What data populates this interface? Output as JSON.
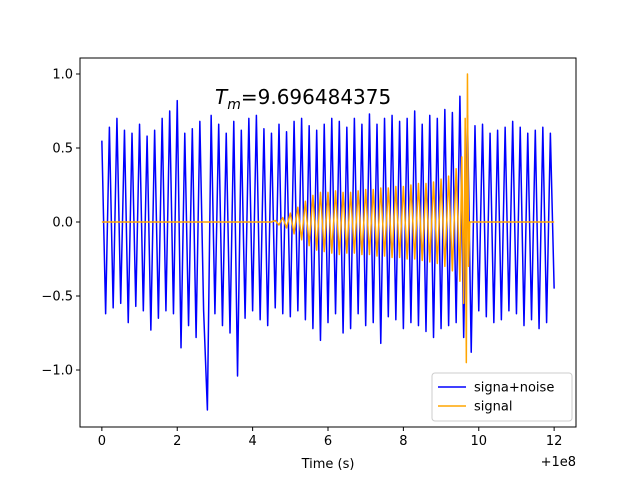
{
  "chart_data": {
    "type": "line",
    "xlabel": "Time (s)",
    "x_offset_label": "+1e8",
    "annotation": {
      "symbol": "T",
      "subscript": "m",
      "text": "=9.696484375"
    },
    "xlim": [
      -0.58,
      12.58
    ],
    "ylim": [
      -1.385,
      1.108
    ],
    "xticks": [
      0,
      2,
      4,
      6,
      8,
      10,
      12
    ],
    "yticks": [
      {
        "value": -1,
        "label": "−1.0"
      },
      {
        "value": -0.5,
        "label": "−0.5"
      },
      {
        "value": 0,
        "label": "0.0"
      },
      0.5,
      {
        "value": 1,
        "label": "1.0"
      }
    ],
    "legend": "lower right",
    "series": [
      {
        "name": "signa+noise",
        "color": "#0000ff",
        "x": [
          0,
          0.1,
          0.2,
          0.3,
          0.4,
          0.5,
          0.6,
          0.7,
          0.8,
          0.9,
          1,
          1.1,
          1.2,
          1.3,
          1.4,
          1.5,
          1.6,
          1.7,
          1.8,
          1.9,
          2,
          2.1,
          2.2,
          2.3,
          2.4,
          2.5,
          2.6,
          2.7,
          2.8,
          2.9,
          3,
          3.1,
          3.2,
          3.3,
          3.4,
          3.5,
          3.6,
          3.7,
          3.8,
          3.9,
          4,
          4.1,
          4.2,
          4.3,
          4.4,
          4.5,
          4.6,
          4.7,
          4.8,
          4.9,
          5,
          5.1,
          5.2,
          5.3,
          5.4,
          5.5,
          5.6,
          5.7,
          5.8,
          5.9,
          6,
          6.1,
          6.2,
          6.3,
          6.4,
          6.5,
          6.6,
          6.7,
          6.8,
          6.9,
          7,
          7.1,
          7.2,
          7.3,
          7.4,
          7.5,
          7.6,
          7.7,
          7.8,
          7.9,
          8,
          8.1,
          8.2,
          8.3,
          8.4,
          8.5,
          8.6,
          8.7,
          8.8,
          8.9,
          9,
          9.1,
          9.2,
          9.3,
          9.4,
          9.5,
          9.6,
          9.7,
          9.8,
          9.9,
          10,
          10.1,
          10.2,
          10.3,
          10.4,
          10.5,
          10.6,
          10.7,
          10.8,
          10.9,
          11,
          11.1,
          11.2,
          11.3,
          11.4,
          11.5,
          11.6,
          11.7,
          11.8,
          11.9,
          12
        ],
        "values": [
          0.55,
          -0.62,
          0.64,
          -0.58,
          0.7,
          -0.55,
          0.62,
          -0.68,
          0.6,
          -0.57,
          0.66,
          -0.6,
          0.58,
          -0.73,
          0.62,
          -0.65,
          0.7,
          -0.6,
          0.75,
          -0.62,
          0.82,
          -0.85,
          0.6,
          -0.7,
          0.63,
          -0.78,
          0.68,
          -0.6,
          -1.27,
          0.72,
          -0.62,
          0.66,
          -0.7,
          0.6,
          -0.75,
          0.68,
          -1.04,
          0.62,
          -0.65,
          0.7,
          -0.6,
          0.72,
          -0.66,
          0.63,
          -0.7,
          0.6,
          -0.58,
          0.66,
          -0.62,
          0.61,
          -0.64,
          0.68,
          -0.6,
          0.7,
          -0.66,
          0.65,
          -0.72,
          0.62,
          -0.8,
          0.66,
          -0.68,
          0.7,
          -0.62,
          0.68,
          -0.75,
          0.64,
          -0.72,
          0.7,
          -0.62,
          0.66,
          -0.7,
          0.73,
          -0.68,
          0.66,
          -0.82,
          0.7,
          -0.64,
          0.72,
          -0.66,
          0.68,
          -0.72,
          0.7,
          -0.68,
          0.75,
          -0.7,
          0.66,
          -0.74,
          0.72,
          -0.78,
          0.7,
          -0.72,
          0.76,
          -0.7,
          0.74,
          -0.68,
          0.85,
          -0.78,
          0.72,
          -0.88,
          0.65,
          -0.6,
          0.66,
          -0.64,
          0.6,
          -0.68,
          0.62,
          -0.66,
          0.64,
          -0.6,
          0.68,
          -0.62,
          0.64,
          -0.7,
          0.6,
          -0.66,
          0.62,
          -0.72,
          0.64,
          -0.68,
          0.6,
          -0.45
        ]
      },
      {
        "name": "signal",
        "color": "#ffa500",
        "x": [
          0,
          4.5,
          4.6,
          4.7,
          4.8,
          4.9,
          5,
          5.1,
          5.2,
          5.3,
          5.4,
          5.5,
          5.6,
          5.7,
          5.8,
          5.9,
          6,
          6.1,
          6.2,
          6.3,
          6.4,
          6.5,
          6.6,
          6.7,
          6.8,
          6.9,
          7,
          7.1,
          7.2,
          7.3,
          7.4,
          7.5,
          7.6,
          7.7,
          7.8,
          7.9,
          8,
          8.1,
          8.2,
          8.3,
          8.4,
          8.5,
          8.6,
          8.7,
          8.8,
          8.9,
          9,
          9.1,
          9.2,
          9.3,
          9.4,
          9.5,
          9.55,
          9.6,
          9.64,
          9.67,
          9.7,
          9.73,
          9.76,
          12
        ],
        "values": [
          0,
          0,
          0.01,
          -0.02,
          0.03,
          -0.04,
          0.06,
          -0.08,
          0.1,
          -0.12,
          0.14,
          -0.16,
          0.18,
          -0.19,
          0.2,
          -0.2,
          0.2,
          -0.21,
          0.21,
          -0.22,
          0.2,
          -0.21,
          0.2,
          -0.21,
          0.21,
          -0.22,
          0.22,
          -0.22,
          0.22,
          -0.23,
          0.23,
          -0.23,
          0.23,
          -0.24,
          0.24,
          -0.24,
          0.24,
          -0.25,
          0.25,
          -0.25,
          0.26,
          -0.26,
          0.26,
          -0.27,
          0.27,
          -0.28,
          0.29,
          -0.3,
          0.31,
          -0.33,
          0.36,
          -0.4,
          0.44,
          -0.55,
          0.7,
          -0.95,
          1.0,
          -0.3,
          0,
          0
        ]
      }
    ]
  }
}
